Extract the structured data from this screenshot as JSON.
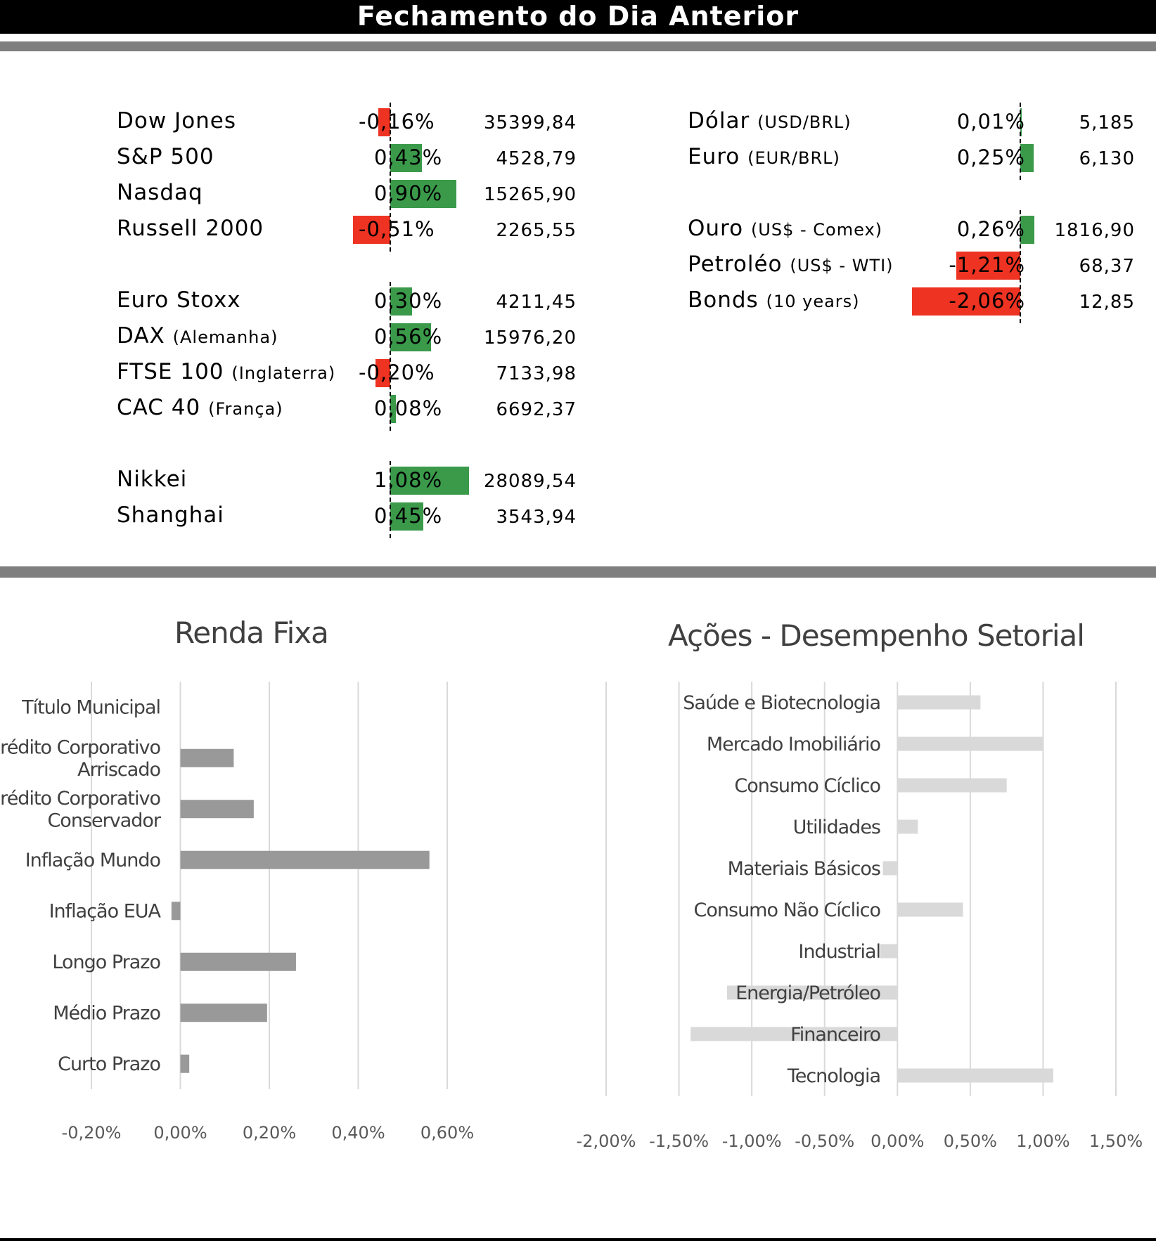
{
  "header": {
    "title": "Fechamento do Dia Anterior"
  },
  "colors": {
    "positive": "#3a9a4a",
    "negative": "#ee3322",
    "fixed_income_bar": "#999999",
    "sector_bar": "#d9d9d9"
  },
  "indices": {
    "groups": [
      [
        {
          "name": "Dow Jones",
          "sub": "",
          "pct": "-0,16%",
          "pct_value": -0.16,
          "value": "35399,84"
        },
        {
          "name": "S&P 500",
          "sub": "",
          "pct": "0,43%",
          "pct_value": 0.43,
          "value": "4528,79"
        },
        {
          "name": "Nasdaq",
          "sub": "",
          "pct": "0,90%",
          "pct_value": 0.9,
          "value": "15265,90"
        },
        {
          "name": "Russell 2000",
          "sub": "",
          "pct": "-0,51%",
          "pct_value": -0.51,
          "value": "2265,55"
        }
      ],
      [
        {
          "name": "Euro Stoxx",
          "sub": "",
          "pct": "0,30%",
          "pct_value": 0.3,
          "value": "4211,45"
        },
        {
          "name": "DAX",
          "sub": "(Alemanha)",
          "pct": "0,56%",
          "pct_value": 0.56,
          "value": "15976,20"
        },
        {
          "name": "FTSE 100",
          "sub": "(Inglaterra)",
          "pct": "-0,20%",
          "pct_value": -0.2,
          "value": "7133,98"
        },
        {
          "name": "CAC 40",
          "sub": "(França)",
          "pct": "0,08%",
          "pct_value": 0.08,
          "value": "6692,37"
        }
      ],
      [
        {
          "name": "Nikkei",
          "sub": "",
          "pct": "1,08%",
          "pct_value": 1.08,
          "value": "28089,54"
        },
        {
          "name": "Shanghai",
          "sub": "",
          "pct": "0,45%",
          "pct_value": 0.45,
          "value": "3543,94"
        }
      ]
    ]
  },
  "assets": {
    "groups": [
      [
        {
          "name": "Dólar",
          "sub": "(USD/BRL)",
          "pct": "0,01%",
          "pct_value": 0.01,
          "value": "5,185"
        },
        {
          "name": "Euro",
          "sub": "(EUR/BRL)",
          "pct": "0,25%",
          "pct_value": 0.25,
          "value": "6,130"
        }
      ],
      [
        {
          "name": "Ouro",
          "sub": "(US$ - Comex)",
          "pct": "0,26%",
          "pct_value": 0.26,
          "value": "1816,90"
        },
        {
          "name": "Petroléo",
          "sub": "(US$ - WTI)",
          "pct": "-1,21%",
          "pct_value": -1.21,
          "value": "68,37"
        },
        {
          "name": "Bonds",
          "sub": "(10 years)",
          "pct": "-2,06%",
          "pct_value": -2.06,
          "value": "12,85"
        }
      ]
    ]
  },
  "chart_data": [
    {
      "type": "bar",
      "orientation": "horizontal",
      "title": "Renda Fixa",
      "categories": [
        "Título Municipal",
        "Crédito Corporativo Arriscado",
        "Crédito Corporativo Conservador",
        "Inflação Mundo",
        "Inflação EUA",
        "Longo Prazo",
        "Médio Prazo",
        "Curto Prazo"
      ],
      "category_lines": [
        [
          "Título Municipal"
        ],
        [
          "Crédito Corporativo",
          "Arriscado"
        ],
        [
          "Crédito Corporativo",
          "Conservador"
        ],
        [
          "Inflação Mundo"
        ],
        [
          "Inflação EUA"
        ],
        [
          "Longo Prazo"
        ],
        [
          "Médio Prazo"
        ],
        [
          "Curto Prazo"
        ]
      ],
      "values": [
        0.0,
        0.12,
        0.165,
        0.56,
        -0.02,
        0.26,
        0.195,
        0.02
      ],
      "xlim": [
        -0.2,
        0.6
      ],
      "xticks": [
        -0.2,
        0.0,
        0.2,
        0.4,
        0.6
      ],
      "xtick_labels": [
        "-0,20%",
        "0,00%",
        "0,20%",
        "0,40%",
        "0,60%"
      ],
      "grid": true
    },
    {
      "type": "bar",
      "orientation": "horizontal",
      "title": "Ações - Desempenho Setorial",
      "categories": [
        "Saúde e Biotecnologia",
        "Mercado Imobiliário",
        "Consumo Cíclico",
        "Utilidades",
        "Materiais Básicos",
        "Consumo Não Cíclico",
        "Industrial",
        "Energia/Petróleo",
        "Financeiro",
        "Tecnologia"
      ],
      "values": [
        0.57,
        1.0,
        0.75,
        0.14,
        -0.1,
        0.45,
        -0.12,
        -1.17,
        -1.42,
        1.07
      ],
      "xlim": [
        -2.0,
        1.5
      ],
      "xticks": [
        -2.0,
        -1.5,
        -1.0,
        -0.5,
        0.0,
        0.5,
        1.0,
        1.5
      ],
      "xtick_labels": [
        "-2,00%",
        "-1,50%",
        "-1,00%",
        "-0,50%",
        "0,00%",
        "0,50%",
        "1,00%",
        "1,50%"
      ],
      "grid": true
    }
  ]
}
